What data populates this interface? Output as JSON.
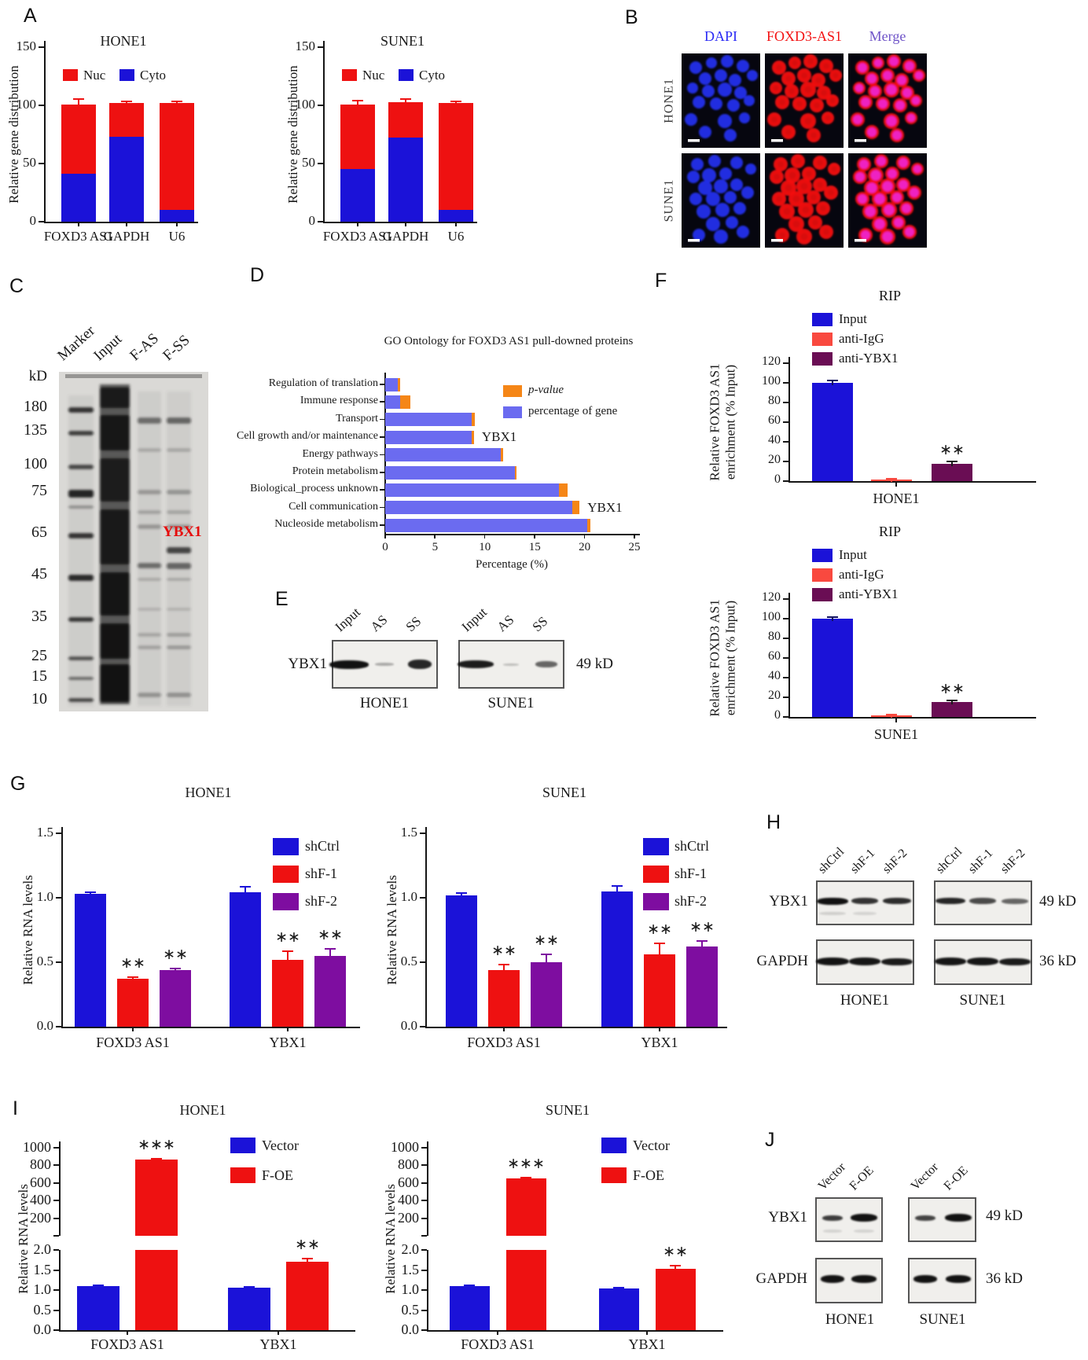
{
  "colors": {
    "bar_blue": "#1b12d8",
    "bar_red": "#ee1111",
    "bar_salmon": "#f9493f",
    "bar_maroon": "#6a0d54",
    "bar_purple": "#7e0da0",
    "go_blue": "#6b6bf0",
    "go_orange": "#f58617",
    "dapi_blue": "#2a2af5",
    "foxd3_red": "#f31212",
    "merge_violet": "#6f54c8",
    "gel_annotation_red": "#e60c0c"
  },
  "panel_a": {
    "label": "A"
  },
  "panel_b": {
    "label": "B",
    "columns": [
      {
        "label": "DAPI",
        "color": "#2a2af5"
      },
      {
        "label": "FOXD3-AS1",
        "color": "#f31212"
      },
      {
        "label": "Merge",
        "color": "#6f54c8"
      }
    ],
    "rows": [
      "HONE1",
      "SUNE1"
    ]
  },
  "panel_c": {
    "label": "C",
    "lanes": [
      "Marker",
      "Input",
      "F-AS",
      "F-SS"
    ],
    "ladder": [
      "kD",
      "180",
      "135",
      "100",
      "75",
      "65",
      "45",
      "35",
      "25",
      "15",
      "10"
    ],
    "annotation": "YBX1"
  },
  "panel_d": {
    "label": "D"
  },
  "panel_e": {
    "label": "E",
    "protein": "YBX1",
    "size": "49 kD",
    "lanes": [
      "Input",
      "AS",
      "SS"
    ],
    "cells": [
      "HONE1",
      "SUNE1"
    ]
  },
  "panel_f": {
    "label": "F"
  },
  "panel_g": {
    "label": "G"
  },
  "panel_h": {
    "label": "H",
    "lanes": [
      "shCtrl",
      "shF-1",
      "shF-2"
    ],
    "rows": [
      {
        "protein": "YBX1",
        "size": "49 kD"
      },
      {
        "protein": "GAPDH",
        "size": "36 kD"
      }
    ],
    "cells": [
      "HONE1",
      "SUNE1"
    ]
  },
  "panel_i": {
    "label": "I"
  },
  "panel_j": {
    "label": "J",
    "lanes": [
      "Vector",
      "F-OE"
    ],
    "rows": [
      {
        "protein": "YBX1",
        "size": "49 kD"
      },
      {
        "protein": "GAPDH",
        "size": "36 kD"
      }
    ],
    "cells": [
      "HONE1",
      "SUNE1"
    ]
  },
  "chart_data": [
    {
      "id": "A1",
      "type": "bar",
      "title": "HONE1",
      "ylabel": "Relative gene distribution",
      "ylim": [
        0,
        150
      ],
      "yticks": [
        0,
        50,
        100,
        150
      ],
      "categories": [
        "FOXD3 AS1",
        "GAPDH",
        "U6"
      ],
      "series": [
        {
          "name": "Cyto",
          "color": "#1b12d8",
          "values": [
            41,
            73,
            10
          ],
          "err": [
            3,
            3,
            2
          ]
        },
        {
          "name": "Nuc",
          "color": "#ee1111",
          "values": [
            60,
            29,
            92
          ],
          "err": [
            5,
            2,
            1.5
          ]
        }
      ],
      "stacked": true,
      "legend_order": [
        "Nuc",
        "Cyto"
      ],
      "legend_position": "top-inside"
    },
    {
      "id": "A2",
      "type": "bar",
      "title": "SUNE1",
      "ylabel": "Relative gene distribution",
      "ylim": [
        0,
        150
      ],
      "yticks": [
        0,
        50,
        100,
        150
      ],
      "categories": [
        "FOXD3 AS1",
        "GAPDH",
        "U6"
      ],
      "series": [
        {
          "name": "Cyto",
          "color": "#1b12d8",
          "values": [
            45,
            72,
            10
          ],
          "err": [
            4,
            4,
            2
          ]
        },
        {
          "name": "Nuc",
          "color": "#ee1111",
          "values": [
            56,
            31,
            92
          ],
          "err": [
            4,
            3,
            2
          ]
        }
      ],
      "stacked": true,
      "legend_order": [
        "Nuc",
        "Cyto"
      ],
      "legend_position": "top-inside"
    },
    {
      "id": "D",
      "type": "bar",
      "orientation": "horizontal",
      "title": "GO Ontology for FOXD3 AS1 pull-downed proteins",
      "xlabel": "Percentage (%)",
      "xlim": [
        0,
        25
      ],
      "xticks": [
        0,
        5,
        10,
        15,
        20,
        25
      ],
      "categories": [
        "Regulation of translation",
        "Immune response",
        "Transport",
        "Cell growth and/or maintenance",
        "Energy pathways",
        "Protein metabolism",
        "Biological_process unknown",
        "Cell communication",
        "Nucleoside metabolism"
      ],
      "series": [
        {
          "name": "percentage of gene",
          "color": "#6b6bf0",
          "values": [
            1.3,
            1.5,
            8.7,
            8.7,
            11.6,
            13.0,
            17.4,
            18.8,
            20.3
          ]
        },
        {
          "name": "p-value",
          "color": "#f58617",
          "values": [
            0.2,
            1.0,
            0.3,
            0.2,
            0.2,
            0.2,
            0.9,
            0.7,
            0.3
          ]
        }
      ],
      "legend": [
        "p-value",
        "percentage of gene"
      ],
      "annotations": [
        {
          "category": "Cell growth and/or maintenance",
          "text": "YBX1"
        },
        {
          "category": "Cell communication",
          "text": "YBX1"
        }
      ]
    },
    {
      "id": "F1",
      "type": "bar",
      "title": "RIP",
      "ylabel": [
        "Relative FOXD3 AS1",
        "enrichment (% Input)"
      ],
      "ylim": [
        0,
        120
      ],
      "yticks": [
        0,
        20,
        40,
        60,
        80,
        100,
        120
      ],
      "xlabel": "HONE1",
      "series": [
        {
          "name": "Input",
          "color": "#1b12d8",
          "value": 100,
          "err": 3,
          "errColor": "#101060"
        },
        {
          "name": "anti-IgG",
          "color": "#f9493f",
          "value": 1.5,
          "err": 1,
          "errColor": "#f9493f"
        },
        {
          "name": "anti-YBX1",
          "color": "#6a0d54",
          "value": 18,
          "err": 3,
          "errColor": "#1a1a1a",
          "stars": "**"
        }
      ]
    },
    {
      "id": "F2",
      "type": "bar",
      "title": "RIP",
      "ylabel": [
        "Relative FOXD3 AS1",
        "enrichment (% Input)"
      ],
      "ylim": [
        0,
        120
      ],
      "yticks": [
        0,
        20,
        40,
        60,
        80,
        100,
        120
      ],
      "xlabel": "SUNE1",
      "series": [
        {
          "name": "Input",
          "color": "#1b12d8",
          "value": 100,
          "err": 2.5,
          "errColor": "#101060"
        },
        {
          "name": "anti-IgG",
          "color": "#f9493f",
          "value": 1.8,
          "err": 1,
          "errColor": "#f9493f"
        },
        {
          "name": "anti-YBX1",
          "color": "#6a0d54",
          "value": 15,
          "err": 2.5,
          "errColor": "#1a1a1a",
          "stars": "**"
        }
      ]
    },
    {
      "id": "G1",
      "type": "bar",
      "title": "HONE1",
      "ylabel": "Relative RNA levels",
      "ylim": [
        0,
        1.5
      ],
      "yticks": [
        "0.0",
        "0.5",
        "1.0",
        "1.5"
      ],
      "categories": [
        "FOXD3 AS1",
        "YBX1"
      ],
      "series": [
        {
          "name": "shCtrl",
          "color": "#1b12d8",
          "values": [
            1.03,
            1.04
          ],
          "err": [
            0.02,
            0.05
          ],
          "stars": [
            null,
            null
          ]
        },
        {
          "name": "shF-1",
          "color": "#ee1111",
          "values": [
            0.37,
            0.52
          ],
          "err": [
            0.02,
            0.07
          ],
          "stars": [
            "**",
            "**"
          ]
        },
        {
          "name": "shF-2",
          "color": "#7e0da0",
          "values": [
            0.44,
            0.55
          ],
          "err": [
            0.02,
            0.06
          ],
          "stars": [
            "**",
            "**"
          ]
        }
      ]
    },
    {
      "id": "G2",
      "type": "bar",
      "title": "SUNE1",
      "ylabel": "Relative RNA levels",
      "ylim": [
        0,
        1.5
      ],
      "yticks": [
        "0.0",
        "0.5",
        "1.0",
        "1.5"
      ],
      "categories": [
        "FOXD3 AS1",
        "YBX1"
      ],
      "series": [
        {
          "name": "shCtrl",
          "color": "#1b12d8",
          "values": [
            1.02,
            1.05
          ],
          "err": [
            0.02,
            0.05
          ],
          "stars": [
            null,
            null
          ]
        },
        {
          "name": "shF-1",
          "color": "#ee1111",
          "values": [
            0.44,
            0.56
          ],
          "err": [
            0.05,
            0.09
          ],
          "stars": [
            "**",
            "**"
          ]
        },
        {
          "name": "shF-2",
          "color": "#7e0da0",
          "values": [
            0.5,
            0.62
          ],
          "err": [
            0.07,
            0.05
          ],
          "stars": [
            "**",
            "**"
          ]
        }
      ]
    },
    {
      "id": "I1",
      "type": "bar",
      "split_axis": true,
      "title": "HONE1",
      "ylabel": "Relative RNA levels",
      "axis_top": {
        "lim": [
          0,
          1000
        ],
        "ticks": [
          200,
          400,
          600,
          800,
          1000
        ]
      },
      "axis_bottom": {
        "lim": [
          0,
          2.0
        ],
        "ticks": [
          "0.0",
          "0.5",
          "1.0",
          "1.5",
          "2.0"
        ]
      },
      "categories": [
        "FOXD3 AS1",
        "YBX1"
      ],
      "series": [
        {
          "name": "Vector",
          "color": "#1b12d8",
          "values": [
            1.1,
            1.05
          ],
          "err": [
            0.03,
            0.05
          ],
          "stars": [
            null,
            null
          ]
        },
        {
          "name": "F-OE",
          "color": "#ee1111",
          "values": [
            870,
            1.7
          ],
          "err": [
            18,
            0.1
          ],
          "stars": [
            "***",
            "**"
          ]
        }
      ]
    },
    {
      "id": "I2",
      "type": "bar",
      "split_axis": true,
      "title": "SUNE1",
      "ylabel": "Relative RNA levels",
      "axis_top": {
        "lim": [
          0,
          1000
        ],
        "ticks": [
          200,
          400,
          600,
          800,
          1000
        ]
      },
      "axis_bottom": {
        "lim": [
          0,
          2.0
        ],
        "ticks": [
          "0.0",
          "0.5",
          "1.0",
          "1.5",
          "2.0"
        ]
      },
      "categories": [
        "FOXD3 AS1",
        "YBX1"
      ],
      "series": [
        {
          "name": "Vector",
          "color": "#1b12d8",
          "values": [
            1.1,
            1.03
          ],
          "err": [
            0.02,
            0.04
          ],
          "stars": [
            null,
            null
          ]
        },
        {
          "name": "F-OE",
          "color": "#ee1111",
          "values": [
            650,
            1.52
          ],
          "err": [
            14,
            0.1
          ],
          "stars": [
            "***",
            "**"
          ]
        }
      ]
    }
  ]
}
